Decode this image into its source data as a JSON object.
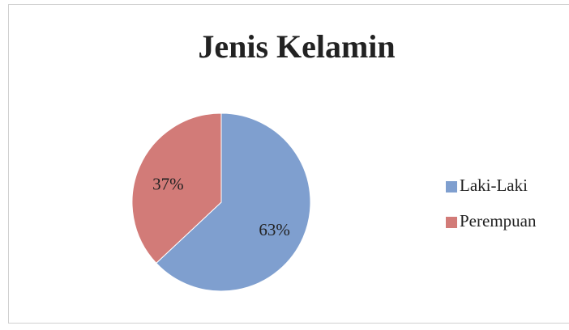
{
  "chart_data": {
    "type": "pie",
    "title": "Jenis Kelamin",
    "categories": [
      "Laki-Laki",
      "Perempuan"
    ],
    "values": [
      63,
      37
    ],
    "value_labels": [
      "63%",
      "37%"
    ],
    "colors": [
      "#7f9fcf",
      "#d27b78"
    ],
    "legend": "right"
  }
}
